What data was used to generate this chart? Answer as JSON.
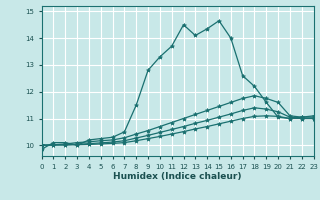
{
  "xlabel": "Humidex (Indice chaleur)",
  "bg_color": "#c8e8e8",
  "grid_color": "#ffffff",
  "line_color": "#1a7070",
  "xlim": [
    0,
    23
  ],
  "ylim": [
    9.6,
    15.2
  ],
  "xticks": [
    0,
    1,
    2,
    3,
    4,
    5,
    6,
    7,
    8,
    9,
    10,
    11,
    12,
    13,
    14,
    15,
    16,
    17,
    18,
    19,
    20,
    21,
    22,
    23
  ],
  "yticks": [
    10,
    11,
    12,
    13,
    14,
    15
  ],
  "series": [
    {
      "x": [
        0,
        1,
        2,
        3,
        4,
        5,
        6,
        7,
        8,
        9,
        10,
        11,
        12,
        13,
        14,
        15,
        16,
        17,
        18,
        19,
        20,
        21,
        22,
        23
      ],
      "y": [
        9.85,
        10.1,
        10.1,
        10.0,
        10.2,
        10.25,
        10.3,
        10.5,
        11.5,
        12.8,
        13.3,
        13.7,
        14.5,
        14.1,
        14.35,
        14.65,
        14.0,
        12.6,
        12.2,
        11.6,
        11.05,
        11.0,
        11.05,
        11.1
      ]
    },
    {
      "x": [
        0,
        1,
        2,
        3,
        4,
        5,
        6,
        7,
        8,
        9,
        10,
        11,
        12,
        13,
        14,
        15,
        16,
        17,
        18,
        19,
        20,
        21,
        22,
        23
      ],
      "y": [
        10.0,
        10.02,
        10.05,
        10.1,
        10.13,
        10.17,
        10.2,
        10.28,
        10.42,
        10.55,
        10.7,
        10.85,
        11.0,
        11.15,
        11.3,
        11.45,
        11.6,
        11.75,
        11.85,
        11.75,
        11.6,
        11.1,
        11.05,
        11.05
      ]
    },
    {
      "x": [
        0,
        1,
        2,
        3,
        4,
        5,
        6,
        7,
        8,
        9,
        10,
        11,
        12,
        13,
        14,
        15,
        16,
        17,
        18,
        19,
        20,
        21,
        22,
        23
      ],
      "y": [
        10.0,
        10.01,
        10.02,
        10.04,
        10.06,
        10.09,
        10.12,
        10.17,
        10.27,
        10.37,
        10.48,
        10.59,
        10.7,
        10.82,
        10.93,
        11.05,
        11.17,
        11.3,
        11.4,
        11.35,
        11.25,
        11.05,
        11.0,
        11.0
      ]
    },
    {
      "x": [
        0,
        1,
        2,
        3,
        4,
        5,
        6,
        7,
        8,
        9,
        10,
        11,
        12,
        13,
        14,
        15,
        16,
        17,
        18,
        19,
        20,
        21,
        22,
        23
      ],
      "y": [
        10.0,
        10.01,
        10.01,
        10.02,
        10.03,
        10.05,
        10.07,
        10.1,
        10.17,
        10.25,
        10.33,
        10.42,
        10.51,
        10.61,
        10.7,
        10.8,
        10.9,
        11.0,
        11.08,
        11.1,
        11.08,
        11.0,
        11.0,
        11.0
      ]
    }
  ]
}
